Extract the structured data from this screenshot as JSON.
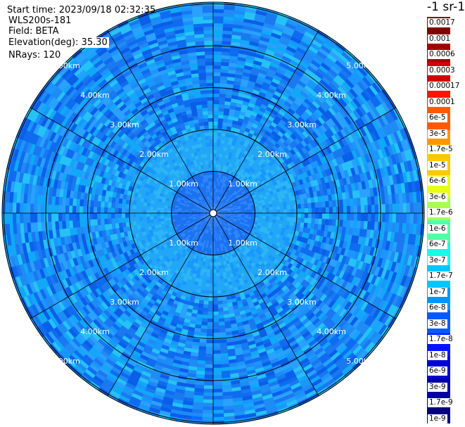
{
  "info": {
    "start_time": "Start time: 2023/09/18 02:32:35",
    "instrument": "WLS200s-181",
    "field": "Field: BETA",
    "elevation": "Elevation(deg): 35.30",
    "nrays": "NRays: 120"
  },
  "colorbar": {
    "title": "-1 sr-1",
    "segment_colors": [
      "#7f0000",
      "#a50000",
      "#d40000",
      "#ff1400",
      "#ff5a00",
      "#ff9600",
      "#ffc800",
      "#e6ff12",
      "#a6ff52",
      "#52ffa6",
      "#12ffe6",
      "#00c8ff",
      "#0096ff",
      "#005aff",
      "#0014ff",
      "#0000d4",
      "#0000a5",
      "#00007f"
    ],
    "labels": [
      "0.0017",
      "0.001",
      "0.0006",
      "0.0003",
      "0.00017",
      "0.0001",
      "6e-5",
      "3e-5",
      "1.7e-5",
      "1e-5",
      "6e-6",
      "3e-6",
      "1.7e-6",
      "1e-6",
      "6e-7",
      "3e-7",
      "1.7e-7",
      "1e-7",
      "6e-8",
      "3e-8",
      "1.7e-8",
      "1e-8",
      "6e-9",
      "3e-9",
      "1.7e-9",
      "1e-9"
    ]
  },
  "range_rings": [
    "1.00km",
    "2.00km",
    "3.00km",
    "4.00km",
    "5.00km"
  ],
  "ring_label_text": {
    "r1": "1.00km",
    "r2": "2.00km",
    "r3": "3.00km",
    "r4": "4.00km",
    "r5": "5.00km"
  },
  "colors": {
    "background": "#ffffff",
    "ring_line": "#000000",
    "plot_blues": [
      "#1a78f0",
      "#1f8bf5",
      "#10a8f7",
      "#2aa0ff",
      "#0f6cf0",
      "#1a96ff",
      "#26c2f5",
      "#0a5ee8"
    ]
  }
}
